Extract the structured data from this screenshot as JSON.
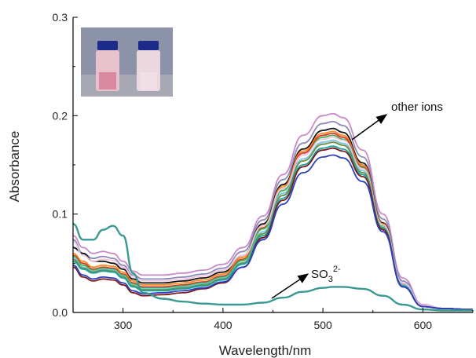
{
  "chart_data": {
    "type": "line",
    "title": "",
    "xlabel": "Wavelength/nm",
    "ylabel": "Absorbance",
    "xlim": [
      250,
      650
    ],
    "ylim": [
      0,
      0.3
    ],
    "x_ticks": [
      300,
      400,
      500,
      600
    ],
    "x_tick_labels": [
      "300",
      "400",
      "500",
      "600"
    ],
    "y_ticks": [
      0.0,
      0.1,
      0.2,
      0.3
    ],
    "y_tick_labels": [
      "0.0",
      "0.1",
      "0.2",
      "0.3"
    ],
    "grid": false,
    "legend": "none",
    "annotations": [
      {
        "text": "other ions",
        "target": "peak of ion spectra near 510 nm"
      },
      {
        "text_main": "SO",
        "sub": "3",
        "sup": "2-",
        "target": "flat spectrum with sulfite"
      }
    ],
    "inset": {
      "description": "photo of two vials: pink (left) and nearly colorless (right)"
    },
    "x": [
      250,
      260,
      270,
      280,
      290,
      300,
      310,
      320,
      340,
      360,
      380,
      400,
      420,
      440,
      460,
      480,
      500,
      510,
      520,
      540,
      560,
      580,
      600,
      620,
      650
    ],
    "series": [
      {
        "color": "#c989c9",
        "scale": 1.0,
        "uv": [
          0.078,
          0.066,
          0.06,
          0.062,
          0.06,
          0.052,
          0.042,
          0.038,
          0.038,
          0.04,
          0.043,
          0.049,
          0.066,
          0.098,
          0.14,
          0.18,
          0.2,
          0.202,
          0.198,
          0.165,
          0.1,
          0.035,
          0.008,
          0.004,
          0.003
        ]
      },
      {
        "color": "#8a8ab5",
        "scale": 0.96,
        "uv": [
          0.074,
          0.06,
          0.055,
          0.057,
          0.055,
          0.048,
          0.038,
          0.034,
          0.034,
          0.036,
          0.039,
          0.045,
          0.062,
          0.094,
          0.135,
          0.172,
          0.192,
          0.194,
          0.19,
          0.158,
          0.095,
          0.032,
          0.007,
          0.004,
          0.003
        ]
      },
      {
        "color": "#111111",
        "scale": 0.93,
        "uv": [
          0.066,
          0.06,
          0.052,
          0.052,
          0.05,
          0.044,
          0.034,
          0.03,
          0.03,
          0.032,
          0.035,
          0.041,
          0.058,
          0.09,
          0.13,
          0.166,
          0.185,
          0.187,
          0.183,
          0.152,
          0.091,
          0.03,
          0.006,
          0.004,
          0.003
        ]
      },
      {
        "color": "#ff8a1f",
        "scale": 0.92,
        "uv": [
          0.06,
          0.052,
          0.046,
          0.048,
          0.047,
          0.041,
          0.032,
          0.028,
          0.028,
          0.03,
          0.033,
          0.039,
          0.056,
          0.088,
          0.128,
          0.164,
          0.182,
          0.184,
          0.18,
          0.15,
          0.09,
          0.029,
          0.006,
          0.004,
          0.003
        ]
      },
      {
        "color": "#e03030",
        "scale": 0.91,
        "uv": [
          0.058,
          0.05,
          0.044,
          0.046,
          0.045,
          0.039,
          0.03,
          0.026,
          0.026,
          0.028,
          0.031,
          0.037,
          0.054,
          0.086,
          0.126,
          0.162,
          0.18,
          0.182,
          0.178,
          0.148,
          0.089,
          0.028,
          0.006,
          0.004,
          0.003
        ]
      },
      {
        "color": "#3cb34a",
        "scale": 0.9,
        "uv": [
          0.057,
          0.048,
          0.043,
          0.045,
          0.044,
          0.038,
          0.029,
          0.025,
          0.025,
          0.027,
          0.03,
          0.036,
          0.053,
          0.085,
          0.124,
          0.16,
          0.178,
          0.18,
          0.176,
          0.147,
          0.088,
          0.028,
          0.006,
          0.004,
          0.003
        ]
      },
      {
        "color": "#f0c8e0",
        "scale": 0.89,
        "uv": [
          0.072,
          0.058,
          0.052,
          0.054,
          0.053,
          0.046,
          0.036,
          0.032,
          0.032,
          0.034,
          0.037,
          0.043,
          0.058,
          0.088,
          0.126,
          0.16,
          0.176,
          0.178,
          0.175,
          0.146,
          0.089,
          0.03,
          0.007,
          0.004,
          0.003
        ]
      },
      {
        "color": "#7bc4e8",
        "scale": 0.88,
        "uv": [
          0.056,
          0.046,
          0.042,
          0.044,
          0.043,
          0.037,
          0.028,
          0.024,
          0.024,
          0.026,
          0.029,
          0.035,
          0.051,
          0.082,
          0.121,
          0.156,
          0.173,
          0.175,
          0.172,
          0.144,
          0.087,
          0.028,
          0.006,
          0.004,
          0.003
        ]
      },
      {
        "color": "#6a8f3a",
        "scale": 0.87,
        "uv": [
          0.054,
          0.045,
          0.041,
          0.043,
          0.042,
          0.036,
          0.027,
          0.023,
          0.023,
          0.025,
          0.028,
          0.034,
          0.05,
          0.08,
          0.119,
          0.154,
          0.171,
          0.173,
          0.17,
          0.142,
          0.086,
          0.027,
          0.006,
          0.004,
          0.003
        ]
      },
      {
        "color": "#1aa3a3",
        "scale": 0.86,
        "uv": [
          0.052,
          0.044,
          0.04,
          0.042,
          0.041,
          0.035,
          0.026,
          0.022,
          0.022,
          0.024,
          0.027,
          0.033,
          0.049,
          0.078,
          0.116,
          0.15,
          0.167,
          0.169,
          0.166,
          0.14,
          0.085,
          0.027,
          0.006,
          0.004,
          0.003
        ]
      },
      {
        "color": "#7a1a1a",
        "scale": 0.85,
        "uv": [
          0.046,
          0.036,
          0.032,
          0.034,
          0.033,
          0.028,
          0.02,
          0.017,
          0.018,
          0.02,
          0.024,
          0.03,
          0.046,
          0.076,
          0.114,
          0.148,
          0.165,
          0.167,
          0.164,
          0.138,
          0.084,
          0.026,
          0.006,
          0.004,
          0.003
        ]
      },
      {
        "color": "#2b3fbf",
        "scale": 0.84,
        "uv": [
          0.048,
          0.038,
          0.034,
          0.036,
          0.035,
          0.03,
          0.022,
          0.019,
          0.02,
          0.022,
          0.025,
          0.031,
          0.046,
          0.074,
          0.11,
          0.142,
          0.158,
          0.16,
          0.157,
          0.133,
          0.082,
          0.026,
          0.006,
          0.004,
          0.003
        ]
      },
      {
        "color": "#3a9a93",
        "scale": 1.0,
        "uv": [
          0.09,
          0.074,
          0.074,
          0.084,
          0.088,
          0.078,
          0.04,
          0.02,
          0.014,
          0.011,
          0.009,
          0.008,
          0.008,
          0.01,
          0.015,
          0.021,
          0.025,
          0.026,
          0.026,
          0.024,
          0.017,
          0.008,
          0.003,
          0.002,
          0.002
        ]
      }
    ]
  }
}
